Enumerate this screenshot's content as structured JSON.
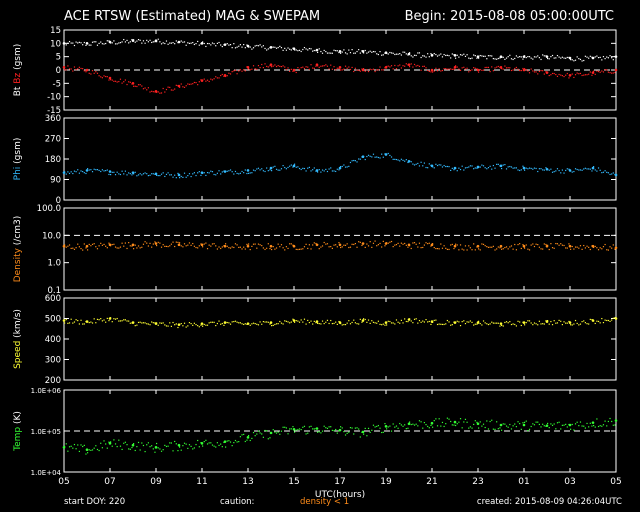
{
  "header": {
    "title": "ACE RTSW (Estimated) MAG & SWEPAM",
    "begin": "Begin: 2015-08-08 05:00:00UTC"
  },
  "footer": {
    "start_doy": "start DOY: 220",
    "caution": "caution:",
    "density_note": "density < 1",
    "created": "created: 2015-08-09 04:26:04UTC"
  },
  "colors": {
    "bt": "#ffffff",
    "bz": "#ff2020",
    "phi": "#33bbff",
    "density": "#ff8c1a",
    "speed": "#ffff33",
    "temp": "#33ff33",
    "frame": "#ffffff",
    "background": "#000000"
  },
  "chart_data": [
    {
      "id": "mag",
      "type": "scatter",
      "ylabel_parts": [
        "Bt",
        "Bz",
        "(gsm)"
      ],
      "ylim": [
        -15,
        15
      ],
      "yticks": [
        15,
        10,
        5,
        0,
        -5,
        -10,
        -15
      ],
      "ytick_labels": [
        "15",
        "10",
        "5",
        "0",
        "-5",
        "-10",
        "-15"
      ],
      "dashed_lines": [
        0
      ],
      "series": [
        {
          "name": "Bt",
          "x": [
            0,
            1,
            2,
            3,
            4,
            5,
            6,
            7,
            8,
            9,
            10,
            11,
            12,
            13,
            14,
            15,
            16,
            17,
            18,
            19,
            20,
            21,
            22,
            23,
            24
          ],
          "values": [
            10,
            10,
            10.5,
            11,
            11,
            10.5,
            10,
            9.5,
            9,
            8.5,
            8,
            7.5,
            7,
            7,
            6.5,
            6,
            5.5,
            5.5,
            5,
            5,
            5,
            5,
            4.5,
            4.5,
            5
          ]
        },
        {
          "name": "Bz",
          "x": [
            0,
            1,
            2,
            3,
            4,
            5,
            6,
            7,
            8,
            9,
            10,
            11,
            12,
            13,
            14,
            15,
            16,
            17,
            18,
            19,
            20,
            21,
            22,
            23,
            24
          ],
          "values": [
            1,
            0,
            -3,
            -5,
            -8,
            -6,
            -4,
            -2,
            1,
            2,
            0,
            2,
            1,
            0,
            1,
            2,
            0,
            1,
            0,
            1,
            0,
            -1,
            -2,
            -1,
            0
          ]
        }
      ]
    },
    {
      "id": "phi",
      "type": "scatter",
      "ylabel_parts": [
        "Phi",
        "(gsm)"
      ],
      "ylim": [
        0,
        360
      ],
      "yticks": [
        360,
        270,
        180,
        90,
        0
      ],
      "ytick_labels": [
        "360",
        "270",
        "180",
        "90",
        "0"
      ],
      "dashed_lines": [],
      "series": [
        {
          "name": "Phi",
          "x": [
            0,
            1,
            2,
            3,
            4,
            5,
            6,
            7,
            8,
            9,
            10,
            11,
            12,
            13,
            14,
            15,
            16,
            17,
            18,
            19,
            20,
            21,
            22,
            23,
            24
          ],
          "values": [
            120,
            130,
            125,
            120,
            115,
            110,
            120,
            125,
            130,
            140,
            150,
            130,
            140,
            190,
            200,
            170,
            150,
            140,
            145,
            150,
            140,
            135,
            130,
            140,
            110
          ]
        }
      ]
    },
    {
      "id": "density",
      "type": "scatter",
      "ylabel_parts": [
        "Density",
        "(/cm3)"
      ],
      "log": true,
      "ylim": [
        0.1,
        100
      ],
      "yticks": [
        100,
        10,
        1,
        0.1
      ],
      "ytick_labels": [
        "100.0",
        "10.0",
        "1.0",
        "0.1"
      ],
      "dashed_lines": [
        10
      ],
      "series": [
        {
          "name": "Density",
          "x": [
            0,
            1,
            2,
            3,
            4,
            5,
            6,
            7,
            8,
            9,
            10,
            11,
            12,
            13,
            14,
            15,
            16,
            17,
            18,
            19,
            20,
            21,
            22,
            23,
            24
          ],
          "values": [
            4,
            4,
            4.5,
            4.5,
            5,
            4.5,
            4.5,
            4,
            4,
            4,
            4,
            4.5,
            4.5,
            5,
            5,
            4.5,
            4.5,
            4,
            4,
            4,
            4,
            4,
            4,
            4,
            3.5
          ]
        }
      ]
    },
    {
      "id": "speed",
      "type": "scatter",
      "ylabel_parts": [
        "Speed",
        "(km/s)"
      ],
      "ylim": [
        200,
        600
      ],
      "yticks": [
        600,
        500,
        400,
        300,
        200
      ],
      "ytick_labels": [
        "600",
        "500",
        "400",
        "300",
        "200"
      ],
      "dashed_lines": [],
      "series": [
        {
          "name": "Speed",
          "x": [
            0,
            1,
            2,
            3,
            4,
            5,
            6,
            7,
            8,
            9,
            10,
            11,
            12,
            13,
            14,
            15,
            16,
            17,
            18,
            19,
            20,
            21,
            22,
            23,
            24
          ],
          "values": [
            490,
            485,
            500,
            480,
            475,
            470,
            475,
            480,
            475,
            480,
            490,
            485,
            480,
            490,
            480,
            495,
            485,
            480,
            480,
            475,
            480,
            485,
            480,
            490,
            500
          ]
        }
      ]
    },
    {
      "id": "temp",
      "type": "scatter",
      "ylabel_parts": [
        "Temp",
        "(K)"
      ],
      "log": true,
      "ylim": [
        10000,
        1000000
      ],
      "yticks": [
        1000000,
        100000,
        10000
      ],
      "ytick_labels": [
        "1.0E+06",
        "1.0E+05",
        "1.0E+04"
      ],
      "dashed_lines": [
        100000
      ],
      "series": [
        {
          "name": "Temp",
          "x": [
            0,
            1,
            2,
            3,
            4,
            5,
            6,
            7,
            8,
            9,
            10,
            11,
            12,
            13,
            14,
            15,
            16,
            17,
            18,
            19,
            20,
            21,
            22,
            23,
            24
          ],
          "values": [
            40000,
            35000,
            50000,
            45000,
            40000,
            45000,
            50000,
            55000,
            70000,
            90000,
            110000,
            115000,
            105000,
            95000,
            130000,
            150000,
            155000,
            165000,
            150000,
            140000,
            140000,
            135000,
            140000,
            160000,
            180000
          ]
        }
      ]
    }
  ],
  "x_axis": {
    "label": "UTC(hours)",
    "range": [
      0,
      24
    ],
    "ticks": [
      0,
      2,
      4,
      6,
      8,
      10,
      12,
      14,
      16,
      18,
      20,
      22,
      24
    ],
    "tick_labels": [
      "05",
      "07",
      "09",
      "11",
      "13",
      "15",
      "17",
      "19",
      "21",
      "23",
      "01",
      "03",
      "05"
    ]
  }
}
